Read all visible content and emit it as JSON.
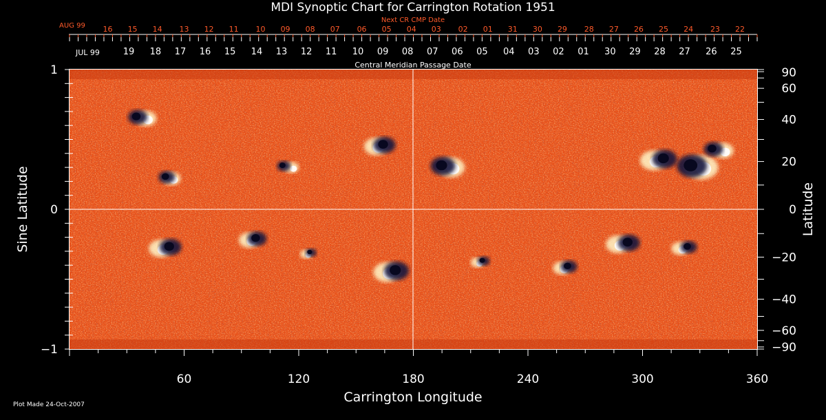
{
  "colors": {
    "background": "#000000",
    "positive_field": "#fff6c8",
    "negative_field": "#14143c",
    "neutral_field": "#e8511a",
    "axis": "#ffffff",
    "date_accent": "#ff5a2a"
  },
  "chart_data": {
    "type": "heatmap",
    "title": "MDI Synoptic Chart for Carrington Rotation 1951",
    "xlabel": "Carrington Longitude",
    "ylabel_left": "Sine Latitude",
    "ylabel_right": "Latitude",
    "xlim": [
      0,
      360
    ],
    "ylim": [
      -1,
      1
    ],
    "x_ticks": [
      60,
      120,
      180,
      240,
      300,
      360
    ],
    "y_ticks_left": [
      {
        "value": 1,
        "label": "1"
      },
      {
        "value": 0,
        "label": "0"
      },
      {
        "value": -1,
        "label": "−1"
      }
    ],
    "y_ticks_right": [
      90,
      60,
      40,
      20,
      0,
      -20,
      -40,
      -60,
      -90
    ],
    "y_ticks_right_labels": [
      "90",
      "60",
      "40",
      "20",
      "0",
      "−20",
      "−40",
      "−60",
      "−90"
    ],
    "grid_lines": {
      "longitude": 180,
      "sine_latitude": 0
    },
    "top_axis": {
      "label": "Next CR CMP Date",
      "month": "AUG 99",
      "dates": [
        "16",
        "15",
        "14",
        "13",
        "12",
        "11",
        "10",
        "09",
        "08",
        "07",
        "06",
        "05",
        "04",
        "03",
        "02",
        "01",
        "31",
        "30",
        "29",
        "28",
        "27",
        "26",
        "25",
        "24",
        "23",
        "22"
      ],
      "date_longitudes": [
        20,
        33,
        46,
        60,
        73,
        86,
        100,
        113,
        126,
        139,
        153,
        166,
        179,
        192,
        206,
        219,
        232,
        245,
        258,
        272,
        285,
        298,
        311,
        324,
        338,
        351
      ]
    },
    "bottom_axis": {
      "label": "Central Meridian Passage Date",
      "month": "JUL 99",
      "dates": [
        "19",
        "18",
        "17",
        "16",
        "15",
        "14",
        "13",
        "12",
        "11",
        "10",
        "09",
        "08",
        "07",
        "06",
        "05",
        "04",
        "03",
        "02",
        "01",
        "30",
        "29",
        "28",
        "27",
        "26",
        "25"
      ],
      "date_longitudes": [
        31,
        45,
        58,
        71,
        84,
        98,
        111,
        124,
        137,
        151,
        164,
        177,
        190,
        203,
        216,
        230,
        243,
        256,
        269,
        283,
        296,
        309,
        322,
        336,
        349
      ]
    },
    "active_regions": [
      {
        "lon": 52,
        "sinlat": 0.22,
        "pos_dx": 4,
        "neg_dx": -3,
        "size": 12
      },
      {
        "lon": 40,
        "sinlat": 0.65,
        "pos_dx": 0,
        "neg_dx": -12,
        "size": 14
      },
      {
        "lon": 114,
        "sinlat": 0.3,
        "pos_dx": 6,
        "neg_dx": -5,
        "size": 10
      },
      {
        "lon": 162,
        "sinlat": 0.45,
        "pos_dx": -4,
        "neg_dx": 8,
        "size": 16
      },
      {
        "lon": 198,
        "sinlat": 0.3,
        "pos_dx": 5,
        "neg_dx": -7,
        "size": 18
      },
      {
        "lon": 308,
        "sinlat": 0.35,
        "pos_dx": -6,
        "neg_dx": 10,
        "size": 18
      },
      {
        "lon": 328,
        "sinlat": 0.3,
        "pos_dx": 8,
        "neg_dx": -6,
        "size": 22
      },
      {
        "lon": 340,
        "sinlat": 0.42,
        "pos_dx": 6,
        "neg_dx": -8,
        "size": 14
      },
      {
        "lon": 50,
        "sinlat": -0.28,
        "pos_dx": -6,
        "neg_dx": 8,
        "size": 16
      },
      {
        "lon": 96,
        "sinlat": -0.22,
        "pos_dx": -5,
        "neg_dx": 6,
        "size": 14
      },
      {
        "lon": 168,
        "sinlat": -0.45,
        "pos_dx": -5,
        "neg_dx": 9,
        "size": 18
      },
      {
        "lon": 260,
        "sinlat": -0.42,
        "pos_dx": -6,
        "neg_dx": 4,
        "size": 12
      },
      {
        "lon": 290,
        "sinlat": -0.25,
        "pos_dx": -8,
        "neg_dx": 8,
        "size": 16
      },
      {
        "lon": 322,
        "sinlat": -0.28,
        "pos_dx": -6,
        "neg_dx": 6,
        "size": 12
      },
      {
        "lon": 125,
        "sinlat": -0.32,
        "pos_dx": -3,
        "neg_dx": 4,
        "size": 8
      },
      {
        "lon": 215,
        "sinlat": -0.38,
        "pos_dx": -4,
        "neg_dx": 5,
        "size": 9
      }
    ]
  },
  "footer": {
    "plot_made": "Plot Made 24-Oct-2007"
  }
}
